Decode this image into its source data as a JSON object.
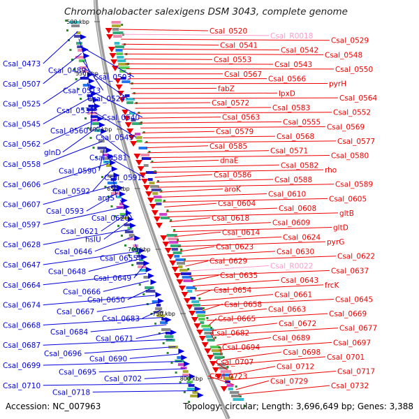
{
  "title": "Chromohalobacter salexigens DSM 3043, complete genome",
  "accession": "Accession: NC_007963",
  "topology": "Topology: circular; Length: 3,696,649 bp; Genes: 3,388",
  "colors": {
    "backbone": "#9a9a9a",
    "forward_strand": "#0000dd",
    "reverse_strand": "#ee0000",
    "rna_label": "#ff99cc",
    "tick": "#2a8a2a"
  },
  "kbp_marks": [
    "500 kbp",
    "550 kbp",
    "600 kbp",
    "650 kbp",
    "700 kbp",
    "750 kbp",
    "800 kbp"
  ],
  "left_labels": [
    "Csal_0473",
    "Csal_0489",
    "Csal_0503",
    "Csal_0507",
    "Csal_0513",
    "Csal_0524",
    "Csal_0525",
    "Csal_0531",
    "Csal_0540",
    "Csal_0545",
    "Csal_0560",
    "Csal_0549",
    "Csal_0562",
    "glnD",
    "Csal_0581",
    "Csal_0558",
    "Csal_0590",
    "Csal_0591",
    "Csal_0606",
    "Csal_0592",
    "argS",
    "Csal_0607",
    "Csal_0593",
    "Csal_0620",
    "Csal_0597",
    "Csal_0621",
    "hslU",
    "Csal_0628",
    "Csal_0646",
    "Csal_0655",
    "Csal_0647",
    "Csal_0648",
    "Csal_0649",
    "Csal_0664",
    "Csal_0666",
    "Csal_0650",
    "Csal_0674",
    "Csal_0667",
    "Csal_0683",
    "Csal_0668",
    "Csal_0684",
    "Csal_0671",
    "Csal_0687",
    "Csal_0696",
    "Csal_0690",
    "Csal_0699",
    "Csal_0695",
    "Csal_0702",
    "Csal_0710",
    "Csal_0718"
  ],
  "right_labels": [
    "Csal_0520",
    "Csal_R0018",
    "Csal_0529",
    "Csal_0541",
    "Csal_0542",
    "Csal_0548",
    "Csal_0553",
    "Csal_0543",
    "Csal_0550",
    "Csal_0567",
    "Csal_0566",
    "pyrH",
    "fabZ",
    "lpxD",
    "Csal_0564",
    "Csal_0572",
    "Csal_0583",
    "Csal_0552",
    "Csal_0563",
    "Csal_0555",
    "Csal_0569",
    "Csal_0579",
    "Csal_0568",
    "Csal_0577",
    "Csal_0585",
    "Csal_0571",
    "Csal_0580",
    "dnaE",
    "Csal_0582",
    "rho",
    "Csal_0586",
    "Csal_0588",
    "Csal_0589",
    "aroK",
    "Csal_0610",
    "Csal_0605",
    "Csal_0604",
    "Csal_0608",
    "gltB",
    "Csal_0618",
    "Csal_0609",
    "gltD",
    "Csal_0614",
    "Csal_0624",
    "pyrG",
    "Csal_0623",
    "Csal_0630",
    "Csal_0622",
    "Csal_0629",
    "Csal_R0022",
    "Csal_0637",
    "Csal_0635",
    "Csal_0643",
    "frcK",
    "Csal_0654",
    "Csal_0661",
    "Csal_0645",
    "Csal_0658",
    "Csal_0663",
    "Csal_0669",
    "Csal_0665",
    "Csal_0672",
    "Csal_0677",
    "Csal_0682",
    "Csal_0689",
    "Csal_0697",
    "Csal_0694",
    "Csal_0698",
    "Csal_0701",
    "Csal_0707",
    "Csal_0712",
    "Csal_0717",
    "Csal_0723",
    "Csal_0729",
    "Csal_0732"
  ]
}
